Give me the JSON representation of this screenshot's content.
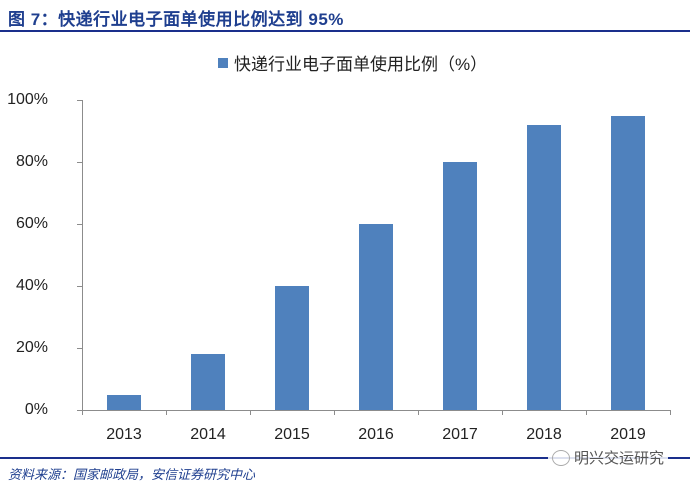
{
  "header": {
    "title": "图 7：快递行业电子面单使用比例达到 95%"
  },
  "footer": {
    "source": "资料来源：国家邮政局，安信证券研究中心",
    "watermark": "明兴交运研究"
  },
  "colors": {
    "bar": "#4f81bd",
    "title": "#1f3f8f",
    "rule": "#1a2f8c"
  },
  "chart_data": {
    "type": "bar",
    "title": "图 7：快递行业电子面单使用比例达到 95%",
    "categories": [
      "2013",
      "2014",
      "2015",
      "2016",
      "2017",
      "2018",
      "2019"
    ],
    "series": [
      {
        "name": "快递行业电子面单使用比例（%）",
        "values": [
          5,
          18,
          40,
          60,
          80,
          92,
          95
        ]
      }
    ],
    "values": [
      5,
      18,
      40,
      60,
      80,
      92,
      95
    ],
    "xlabel": "",
    "ylabel": "",
    "ylim": [
      0,
      100
    ],
    "yticks": [
      "0%",
      "20%",
      "40%",
      "60%",
      "80%",
      "100%"
    ],
    "legend": {
      "position": "top",
      "entries": [
        "快递行业电子面单使用比例（%）"
      ]
    },
    "grid": false,
    "source": "资料来源：国家邮政局，安信证券研究中心"
  }
}
